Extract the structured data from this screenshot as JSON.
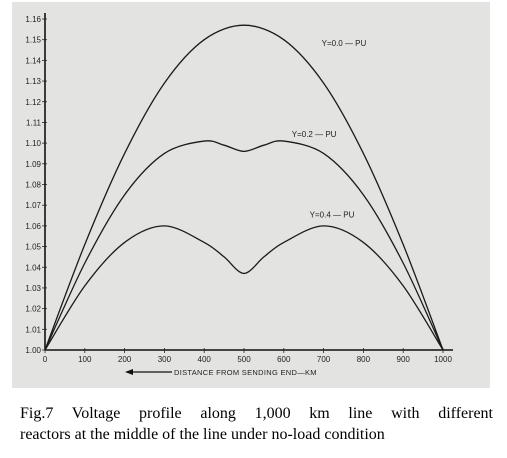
{
  "chart_data": {
    "type": "line",
    "title": "",
    "xlabel": "DISTANCE FROM SENDING END—KM",
    "ylabel": "",
    "xlim": [
      0,
      1000
    ],
    "ylim": [
      1.0,
      1.16
    ],
    "x_ticks": [
      "0",
      "100",
      "200",
      "300",
      "400",
      "500",
      "600",
      "700",
      "800",
      "900",
      "1000"
    ],
    "y_ticks": [
      "1.00",
      "1.01",
      "1.02",
      "1.03",
      "1.04",
      "1.05",
      "1.06",
      "1.07",
      "1.08",
      "1.09",
      "1.10",
      "1.11",
      "1.12",
      "1.13",
      "1.14",
      "1.15",
      "1.16"
    ],
    "grid": false,
    "series": [
      {
        "name": "Y=0.0 — PU",
        "x": [
          0,
          100,
          200,
          300,
          400,
          500,
          600,
          700,
          800,
          900,
          1000
        ],
        "y": [
          1.0,
          1.051,
          1.095,
          1.129,
          1.15,
          1.157,
          1.15,
          1.129,
          1.095,
          1.051,
          1.0
        ]
      },
      {
        "name": "Y=0.2 — PU",
        "x": [
          0,
          100,
          200,
          300,
          400,
          450,
          500,
          550,
          600,
          700,
          800,
          900,
          1000
        ],
        "y": [
          1.0,
          1.042,
          1.075,
          1.095,
          1.101,
          1.099,
          1.096,
          1.099,
          1.101,
          1.095,
          1.075,
          1.042,
          1.0
        ]
      },
      {
        "name": "Y=0.4 — PU",
        "x": [
          0,
          100,
          200,
          300,
          400,
          450,
          500,
          550,
          600,
          700,
          800,
          900,
          1000
        ],
        "y": [
          1.0,
          1.031,
          1.052,
          1.06,
          1.052,
          1.045,
          1.037,
          1.045,
          1.052,
          1.06,
          1.052,
          1.031,
          1.0
        ]
      }
    ]
  },
  "caption": {
    "line1": "Fig.7 Voltage profile along 1,000 km line with different",
    "line2": "reactors at the middle of the line under no-load condition"
  }
}
